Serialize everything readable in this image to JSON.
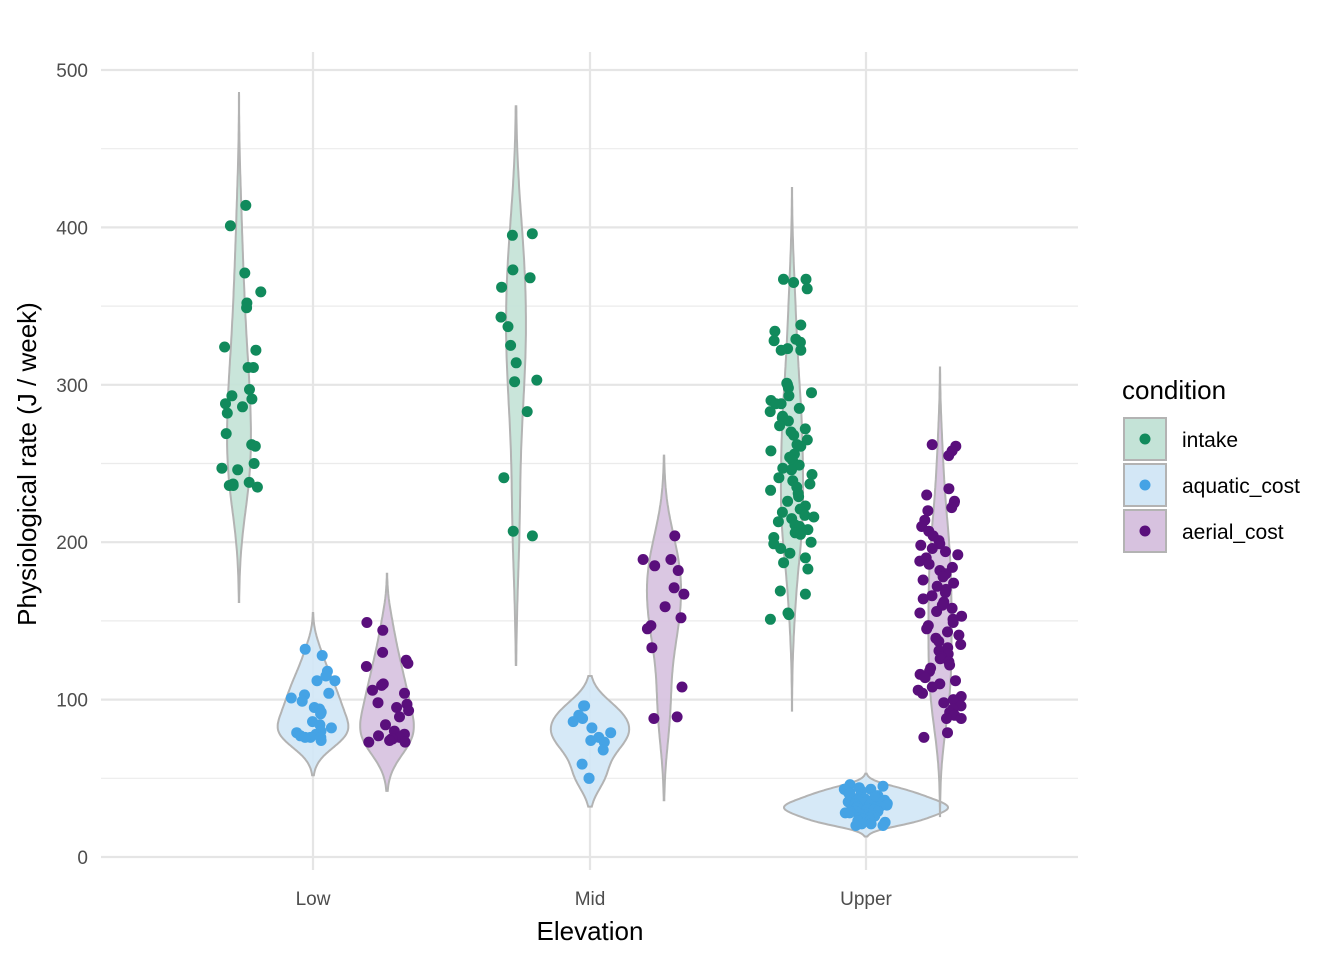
{
  "chart_data": {
    "type": "violin",
    "title": "",
    "xlabel": "Elevation",
    "ylabel": "Physiological rate (J / week)",
    "ylim": [
      0,
      500
    ],
    "yticks": [
      0,
      100,
      200,
      300,
      400,
      500
    ],
    "grid": true,
    "categories": [
      "Low",
      "Mid",
      "Upper"
    ],
    "legend": {
      "title": "condition",
      "position": "right"
    },
    "series": [
      {
        "name": "intake",
        "point_color": "#118a5c",
        "fill_color": "#c4e3d7",
        "violins": [
          {
            "category": "Low",
            "range": [
              162,
              486
            ],
            "points": [
              414,
              401,
              371,
              359,
              352,
              349,
              324,
              322,
              311,
              311,
              297,
              293,
              291,
              288,
              286,
              282,
              269,
              262,
              261,
              250,
              247,
              246,
              238,
              237,
              236,
              236,
              235
            ]
          },
          {
            "category": "Mid",
            "range": [
              122,
              477
            ],
            "points": [
              396,
              395,
              373,
              368,
              362,
              343,
              337,
              325,
              314,
              303,
              302,
              283,
              241,
              207,
              204
            ]
          },
          {
            "category": "Upper",
            "range": [
              93,
              425
            ],
            "points": [
              367,
              367,
              365,
              361,
              338,
              334,
              329,
              328,
              327,
              323,
              322,
              322,
              301,
              300,
              298,
              295,
              293,
              290,
              288,
              288,
              285,
              283,
              280,
              279,
              277,
              274,
              272,
              270,
              268,
              265,
              262,
              261,
              258,
              256,
              254,
              252,
              249,
              247,
              246,
              243,
              241,
              239,
              237,
              235,
              233,
              231,
              229,
              226,
              223,
              221,
              219,
              217,
              216,
              215,
              213,
              211,
              210,
              208,
              206,
              205,
              203,
              200,
              199,
              196,
              193,
              190,
              187,
              183,
              169,
              167,
              155,
              154,
              151
            ]
          }
        ]
      },
      {
        "name": "aquatic_cost",
        "point_color": "#45a3e5",
        "fill_color": "#d3e7f6",
        "violins": [
          {
            "category": "Low",
            "range": [
              52,
              155
            ],
            "points": [
              132,
              128,
              118,
              115,
              112,
              112,
              104,
              103,
              101,
              99,
              95,
              94,
              92,
              91,
              86,
              84,
              82,
              80,
              79,
              78,
              77,
              76,
              76,
              76,
              74
            ]
          },
          {
            "category": "Mid",
            "range": [
              32,
              115
            ],
            "points": [
              96,
              96,
              90,
              88,
              86,
              82,
              79,
              76,
              74,
              73,
              68,
              59,
              50,
              50
            ]
          },
          {
            "category": "Upper",
            "range": [
              13,
              53
            ],
            "points": [
              46,
              45,
              44,
              43,
              43,
              42,
              41,
              41,
              40,
              40,
              39,
              39,
              38,
              38,
              37,
              37,
              36,
              36,
              35,
              35,
              35,
              34,
              34,
              34,
              33,
              33,
              33,
              32,
              32,
              32,
              31,
              31,
              31,
              30,
              30,
              30,
              29,
              29,
              29,
              28,
              28,
              28,
              27,
              27,
              26,
              26,
              25,
              25,
              24,
              24,
              23,
              23,
              22,
              22,
              21,
              21,
              20,
              20
            ]
          }
        ]
      },
      {
        "name": "aerial_cost",
        "point_color": "#5a0f7c",
        "fill_color": "#d7c2df",
        "violins": [
          {
            "category": "Low",
            "range": [
              42,
              180
            ],
            "points": [
              149,
              144,
              130,
              125,
              123,
              121,
              110,
              109,
              106,
              104,
              98,
              97,
              95,
              93,
              89,
              84,
              80,
              78,
              77,
              76,
              75,
              75,
              74,
              73,
              73
            ]
          },
          {
            "category": "Mid",
            "range": [
              36,
              255
            ],
            "points": [
              204,
              189,
              189,
              185,
              182,
              171,
              167,
              159,
              152,
              147,
              145,
              133,
              108,
              89,
              88
            ]
          },
          {
            "category": "Upper",
            "range": [
              26,
              311
            ],
            "points": [
              262,
              261,
              258,
              255,
              234,
              230,
              226,
              225,
              222,
              220,
              214,
              210,
              207,
              204,
              201,
              199,
              198,
              196,
              194,
              192,
              190,
              188,
              186,
              184,
              182,
              180,
              178,
              176,
              174,
              172,
              170,
              168,
              166,
              164,
              162,
              160,
              158,
              156,
              155,
              153,
              151,
              149,
              147,
              145,
              143,
              141,
              139,
              137,
              135,
              133,
              131,
              129,
              127,
              126,
              124,
              122,
              120,
              118,
              116,
              114,
              112,
              110,
              108,
              106,
              104,
              102,
              100,
              98,
              96,
              94,
              92,
              90,
              88,
              88,
              79,
              76
            ]
          }
        ]
      }
    ]
  }
}
